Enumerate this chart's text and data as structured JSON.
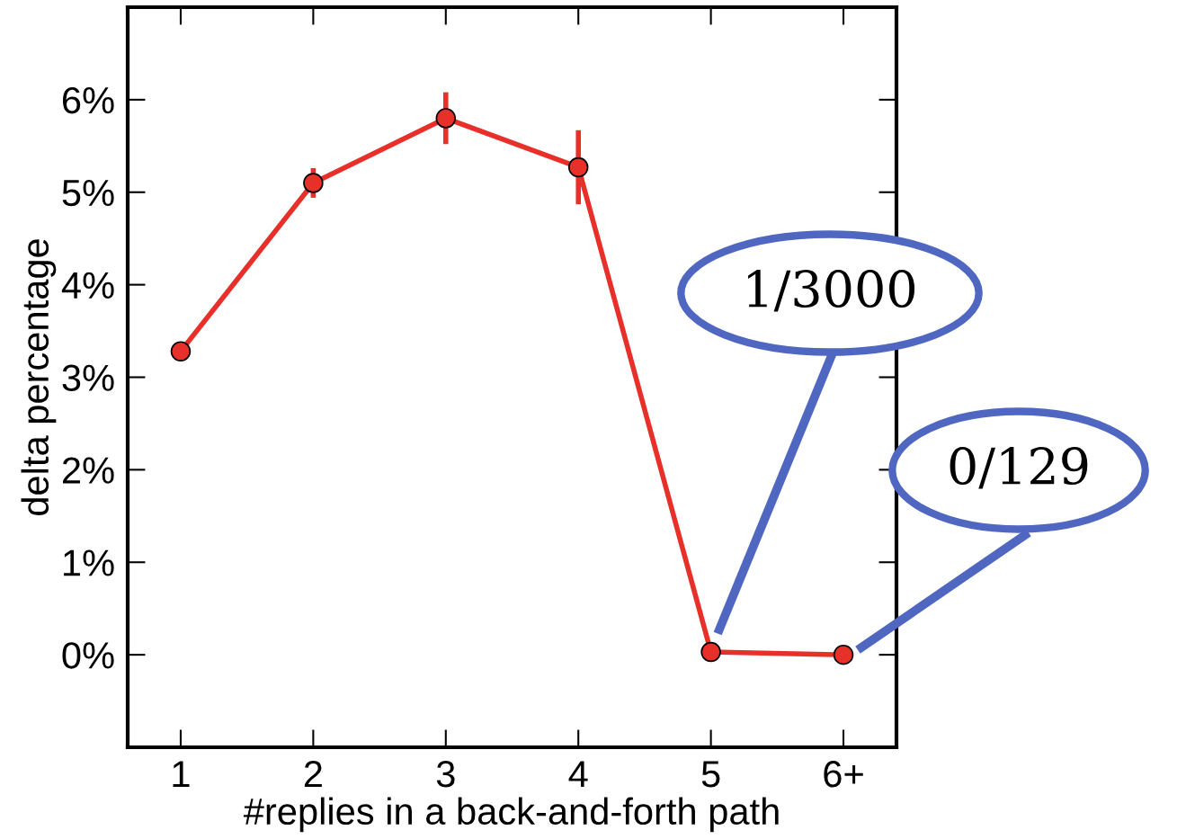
{
  "chart_data": {
    "type": "line",
    "xlabel": "#replies in a back-and-forth path",
    "ylabel": "delta percentage",
    "categories": [
      "1",
      "2",
      "3",
      "4",
      "5",
      "6+"
    ],
    "series": [
      {
        "color": "#e8302a",
        "values": [
          3.28,
          5.1,
          5.8,
          5.27,
          0.03,
          0.0
        ],
        "errors": [
          null,
          0.16,
          0.28,
          0.4,
          null,
          null
        ]
      }
    ],
    "marker": "circle",
    "line_style": "solid",
    "grid": false,
    "legend": false,
    "ylim": [
      -1,
      7
    ],
    "yticks": [
      {
        "value": 0,
        "label": "0%"
      },
      {
        "value": 1,
        "label": "1%"
      },
      {
        "value": 2,
        "label": "2%"
      },
      {
        "value": 3,
        "label": "3%"
      },
      {
        "value": 4,
        "label": "4%"
      },
      {
        "value": 5,
        "label": "5%"
      },
      {
        "value": 6,
        "label": "6%"
      }
    ],
    "annotations": [
      "1/3000",
      "0/129"
    ]
  }
}
